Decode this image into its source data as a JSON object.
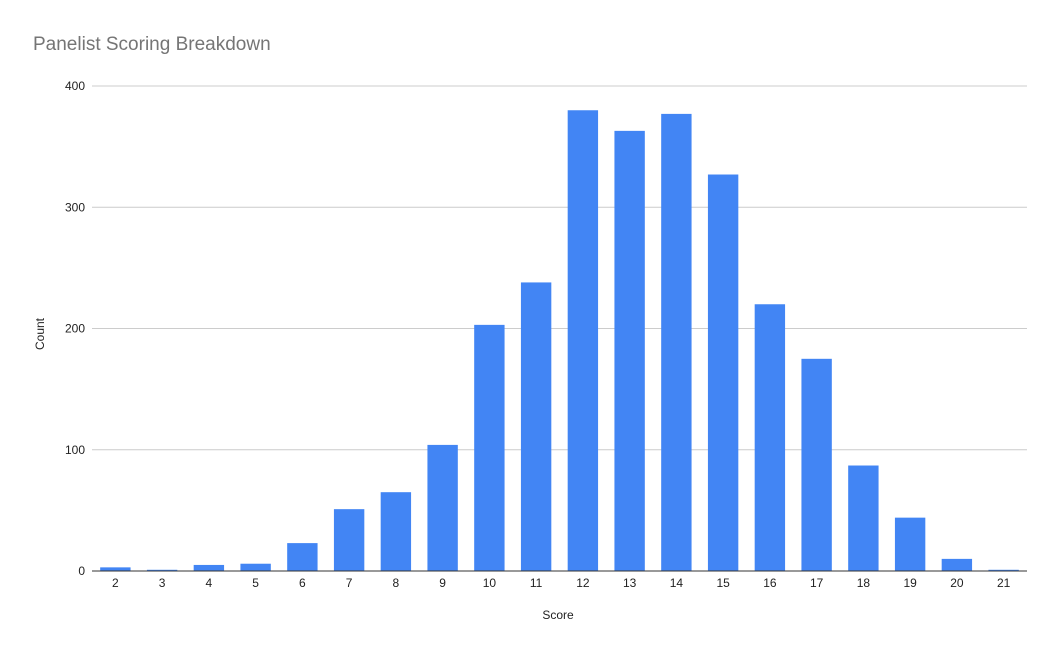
{
  "chart_data": {
    "type": "bar",
    "title": "Panelist Scoring Breakdown",
    "xlabel": "Score",
    "ylabel": "Count",
    "categories": [
      "2",
      "3",
      "4",
      "5",
      "6",
      "7",
      "8",
      "9",
      "10",
      "11",
      "12",
      "13",
      "14",
      "15",
      "16",
      "17",
      "18",
      "19",
      "20",
      "21"
    ],
    "values": [
      3,
      1,
      5,
      6,
      23,
      51,
      65,
      104,
      203,
      238,
      380,
      363,
      377,
      327,
      220,
      175,
      87,
      44,
      10,
      1
    ],
    "ylim": [
      0,
      400
    ],
    "yticks": [
      0,
      100,
      200,
      300,
      400
    ],
    "grid": true,
    "legend": "none",
    "colors": {
      "bar": "#4285f4",
      "grid": "#cccccc",
      "baseline": "#333333",
      "title": "#757575",
      "tick_text": "#222222"
    }
  }
}
